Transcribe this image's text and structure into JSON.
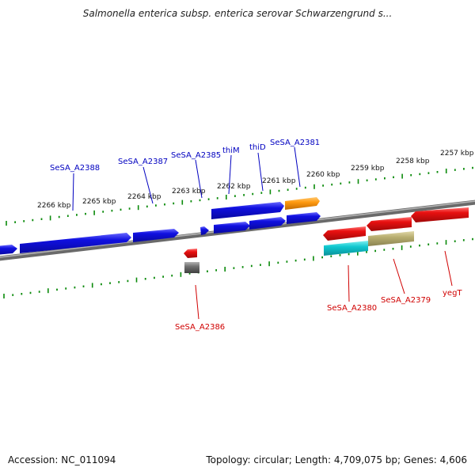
{
  "title": "Salmonella enterica subsp. enterica serovar Schwarzengrund s...",
  "footer": {
    "accession": "Accession: NC_011094",
    "summary": "Topology: circular; Length: 4,709,075 bp; Genes: 4,606"
  },
  "colors": {
    "forward_gene": "#1010e0",
    "reverse_gene": "#e81010",
    "orange_gene": "#ff9a10",
    "cyan_gene": "#10c8d0",
    "olive_gene": "#b8ae70",
    "gray_gene": "#707070",
    "backbone": "#808080",
    "tick": "#0a8a0a",
    "forward_label": "#0000c0",
    "reverse_label": "#d00000"
  },
  "scale_labels": [
    "2266 kbp",
    "2265 kbp",
    "2264 kbp",
    "2263 kbp",
    "2262 kbp",
    "2261 kbp",
    "2260 kbp",
    "2259 kbp",
    "2258 kbp",
    "2257 kbp"
  ],
  "forward_gene_labels": [
    "SeSA_A2388",
    "SeSA_A2387",
    "SeSA_A2385",
    "thiM",
    "thiD",
    "SeSA_A2381"
  ],
  "reverse_gene_labels": [
    "SeSA_A2386",
    "SeSA_A2380",
    "SeSA_A2379",
    "yegT"
  ]
}
